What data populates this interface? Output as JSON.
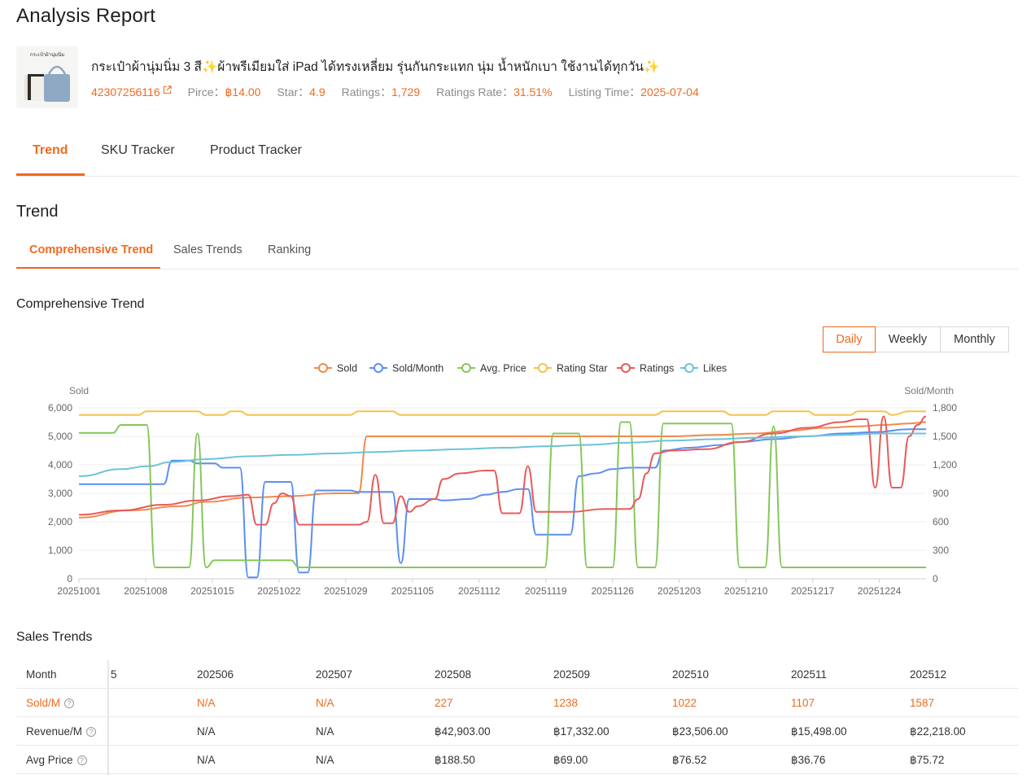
{
  "page_title": "Analysis Report",
  "product": {
    "name": "กระเป๋าผ้านุ่มนิ่ม 3 สี✨ผ้าพรีเมียมใส่ iPad ได้ทรงเหลี่ยม รุ่นกันกระแทก นุ่ม น้ำหนักเบา ใช้งานได้ทุกวัน✨",
    "thumb_text": "กระเป๋าผ้านุ่มนิ่ม",
    "id": "42307256116",
    "price_label": "Pirce：",
    "price": "฿14.00",
    "star_label": "Star：",
    "star": "4.9",
    "ratings_label": "Ratings：",
    "ratings": "1,729",
    "ratings_rate_label": "Ratings Rate：",
    "ratings_rate": "31.51%",
    "listing_label": "Listing Time：",
    "listing_time": "2025-07-04"
  },
  "main_tabs": [
    "Trend",
    "SKU Tracker",
    "Product Tracker"
  ],
  "trend_heading": "Trend",
  "sub_tabs": [
    "Comprehensive Trend",
    "Sales Trends",
    "Ranking"
  ],
  "chart_card_title": "Comprehensive Trend",
  "period_buttons": [
    "Daily",
    "Weekly",
    "Monthly"
  ],
  "colors": {
    "accent": "#ef6a1f",
    "sold": "#f0894b",
    "sold_month": "#5b8ff0",
    "avg_price": "#86c75a",
    "rating_star": "#f7c14a",
    "ratings": "#e85a5a",
    "likes": "#6cc3d8"
  },
  "chart_data": {
    "type": "line",
    "title": "",
    "left_axis_title": "Sold",
    "right_axis_title": "Sold/Month",
    "left_ylim": [
      0,
      6000
    ],
    "right_ylim": [
      0,
      1800
    ],
    "left_ticks": [
      "0",
      "1,000",
      "2,000",
      "3,000",
      "4,000",
      "5,000",
      "6,000"
    ],
    "right_ticks": [
      "0",
      "300",
      "600",
      "900",
      "1,200",
      "1,500",
      "1,800"
    ],
    "x_ticks": [
      "20251001",
      "20251008",
      "20251015",
      "20251022",
      "20251029",
      "20251105",
      "20251112",
      "20251119",
      "20251126",
      "20251203",
      "20251210",
      "20251217",
      "20251224"
    ],
    "grid": true,
    "legend_position": "top-center",
    "legend": [
      "Sold",
      "Sold/Month",
      "Avg. Price",
      "Rating Star",
      "Ratings",
      "Likes"
    ],
    "series": [
      {
        "name": "Sold",
        "axis": "left",
        "points": [
          [
            0,
            2150
          ],
          [
            6,
            2400
          ],
          [
            12,
            2550
          ],
          [
            15,
            2700
          ],
          [
            20,
            2850
          ],
          [
            25,
            2900
          ],
          [
            30,
            3000
          ],
          [
            33,
            3000
          ],
          [
            34,
            5000
          ],
          [
            40,
            5000
          ],
          [
            50,
            5000
          ],
          [
            60,
            5000
          ],
          [
            70,
            5000
          ],
          [
            75,
            5050
          ],
          [
            80,
            5100
          ],
          [
            84,
            5200
          ],
          [
            88,
            5300
          ],
          [
            92,
            5350
          ],
          [
            95,
            5400
          ],
          [
            98,
            5450
          ],
          [
            100,
            5500
          ]
        ]
      },
      {
        "name": "Sold/Month",
        "axis": "left",
        "points": [
          [
            0,
            3320
          ],
          [
            10,
            3320
          ],
          [
            11,
            4150
          ],
          [
            13,
            4150
          ],
          [
            14,
            4050
          ],
          [
            16,
            4050
          ],
          [
            17,
            3900
          ],
          [
            19,
            3900
          ],
          [
            20,
            50
          ],
          [
            21,
            50
          ],
          [
            22,
            3400
          ],
          [
            25,
            3400
          ],
          [
            26,
            220
          ],
          [
            27,
            220
          ],
          [
            28,
            3100
          ],
          [
            32,
            3100
          ],
          [
            33,
            3050
          ],
          [
            37,
            3050
          ],
          [
            38,
            550
          ],
          [
            39,
            2800
          ],
          [
            42,
            2800
          ],
          [
            43,
            2750
          ],
          [
            46,
            2800
          ],
          [
            48,
            2950
          ],
          [
            50,
            3050
          ],
          [
            52,
            3150
          ],
          [
            53,
            3150
          ],
          [
            54,
            1550
          ],
          [
            58,
            1550
          ],
          [
            59,
            3600
          ],
          [
            61,
            3700
          ],
          [
            63,
            3850
          ],
          [
            65,
            3900
          ],
          [
            68,
            3900
          ],
          [
            69,
            4500
          ],
          [
            72,
            4600
          ],
          [
            76,
            4700
          ],
          [
            78,
            4800
          ],
          [
            82,
            4900
          ],
          [
            86,
            5000
          ],
          [
            90,
            5100
          ],
          [
            94,
            5150
          ],
          [
            98,
            5250
          ],
          [
            100,
            5250
          ]
        ]
      },
      {
        "name": "Avg. Price",
        "axis": "left",
        "points": [
          [
            0,
            5120
          ],
          [
            4,
            5120
          ],
          [
            5,
            5400
          ],
          [
            8,
            5400
          ],
          [
            9,
            400
          ],
          [
            13,
            400
          ],
          [
            14,
            5100
          ],
          [
            15,
            400
          ],
          [
            16,
            650
          ],
          [
            22,
            650
          ],
          [
            25,
            650
          ],
          [
            26,
            400
          ],
          [
            50,
            400
          ],
          [
            55,
            400
          ],
          [
            56,
            5100
          ],
          [
            59,
            5100
          ],
          [
            60,
            400
          ],
          [
            63,
            400
          ],
          [
            64,
            5500
          ],
          [
            65,
            5500
          ],
          [
            66,
            400
          ],
          [
            68,
            400
          ],
          [
            69,
            5450
          ],
          [
            77,
            5450
          ],
          [
            78,
            400
          ],
          [
            81,
            400
          ],
          [
            82,
            5350
          ],
          [
            83,
            400
          ],
          [
            100,
            400
          ]
        ]
      },
      {
        "name": "Rating Star",
        "axis": "left",
        "points": [
          [
            0,
            5750
          ],
          [
            7,
            5750
          ],
          [
            8,
            5880
          ],
          [
            14,
            5880
          ],
          [
            15,
            5750
          ],
          [
            17,
            5750
          ],
          [
            18,
            5880
          ],
          [
            19,
            5880
          ],
          [
            20,
            5750
          ],
          [
            32,
            5750
          ],
          [
            33,
            5880
          ],
          [
            37,
            5880
          ],
          [
            38,
            5750
          ],
          [
            68,
            5750
          ],
          [
            69,
            5880
          ],
          [
            76,
            5880
          ],
          [
            77,
            5750
          ],
          [
            81,
            5750
          ],
          [
            82,
            5880
          ],
          [
            86,
            5880
          ],
          [
            87,
            5750
          ],
          [
            91,
            5750
          ],
          [
            92,
            5880
          ],
          [
            95,
            5880
          ],
          [
            96,
            5750
          ],
          [
            98,
            5880
          ],
          [
            100,
            5880
          ]
        ]
      },
      {
        "name": "Ratings",
        "axis": "left",
        "points": [
          [
            0,
            2250
          ],
          [
            5,
            2400
          ],
          [
            10,
            2600
          ],
          [
            14,
            2750
          ],
          [
            18,
            2900
          ],
          [
            20,
            2950
          ],
          [
            21,
            1900
          ],
          [
            22,
            1900
          ],
          [
            23,
            2650
          ],
          [
            24,
            3000
          ],
          [
            25,
            2900
          ],
          [
            26,
            1900
          ],
          [
            33,
            1900
          ],
          [
            34,
            2000
          ],
          [
            35,
            3650
          ],
          [
            36,
            1950
          ],
          [
            37,
            1950
          ],
          [
            38,
            2900
          ],
          [
            39,
            2350
          ],
          [
            40,
            2550
          ],
          [
            42,
            2800
          ],
          [
            43,
            3500
          ],
          [
            45,
            3700
          ],
          [
            48,
            3800
          ],
          [
            49,
            3800
          ],
          [
            50,
            2300
          ],
          [
            51,
            2300
          ],
          [
            52,
            2300
          ],
          [
            53,
            3950
          ],
          [
            54,
            2350
          ],
          [
            58,
            2350
          ],
          [
            62,
            2450
          ],
          [
            65,
            2450
          ],
          [
            66,
            2800
          ],
          [
            67,
            3700
          ],
          [
            68,
            4400
          ],
          [
            70,
            4500
          ],
          [
            74,
            4550
          ],
          [
            78,
            4800
          ],
          [
            82,
            5100
          ],
          [
            86,
            5300
          ],
          [
            90,
            5500
          ],
          [
            92,
            5600
          ],
          [
            93,
            5600
          ],
          [
            94,
            3200
          ],
          [
            95,
            5700
          ],
          [
            96,
            3200
          ],
          [
            97,
            3200
          ],
          [
            98,
            5000
          ],
          [
            99,
            5400
          ],
          [
            100,
            5700
          ]
        ]
      },
      {
        "name": "Likes",
        "axis": "left",
        "points": [
          [
            0,
            3600
          ],
          [
            5,
            3850
          ],
          [
            8,
            3950
          ],
          [
            11,
            4100
          ],
          [
            15,
            4200
          ],
          [
            20,
            4300
          ],
          [
            25,
            4350
          ],
          [
            30,
            4400
          ],
          [
            35,
            4450
          ],
          [
            40,
            4500
          ],
          [
            45,
            4550
          ],
          [
            50,
            4600
          ],
          [
            55,
            4650
          ],
          [
            60,
            4700
          ],
          [
            65,
            4780
          ],
          [
            70,
            4850
          ],
          [
            75,
            4900
          ],
          [
            80,
            4950
          ],
          [
            85,
            5000
          ],
          [
            90,
            5050
          ],
          [
            95,
            5100
          ],
          [
            100,
            5100
          ]
        ]
      }
    ]
  },
  "sales_trends_title": "Sales Trends",
  "sales_table": {
    "header_label": "Month",
    "clipped_header": "5",
    "months": [
      "202506",
      "202507",
      "202508",
      "202509",
      "202510",
      "202511",
      "202512"
    ],
    "rows": [
      {
        "label": "Sold/M",
        "values": [
          "N/A",
          "N/A",
          "227",
          "1238",
          "1022",
          "1107",
          "1587"
        ]
      },
      {
        "label": "Revenue/M",
        "values": [
          "N/A",
          "N/A",
          "฿42,903.00",
          "฿17,332.00",
          "฿23,506.00",
          "฿15,498.00",
          "฿22,218.00"
        ]
      },
      {
        "label": "Avg Price",
        "values": [
          "N/A",
          "N/A",
          "฿188.50",
          "฿69.00",
          "฿76.52",
          "฿36.76",
          "฿75.72"
        ]
      }
    ]
  }
}
